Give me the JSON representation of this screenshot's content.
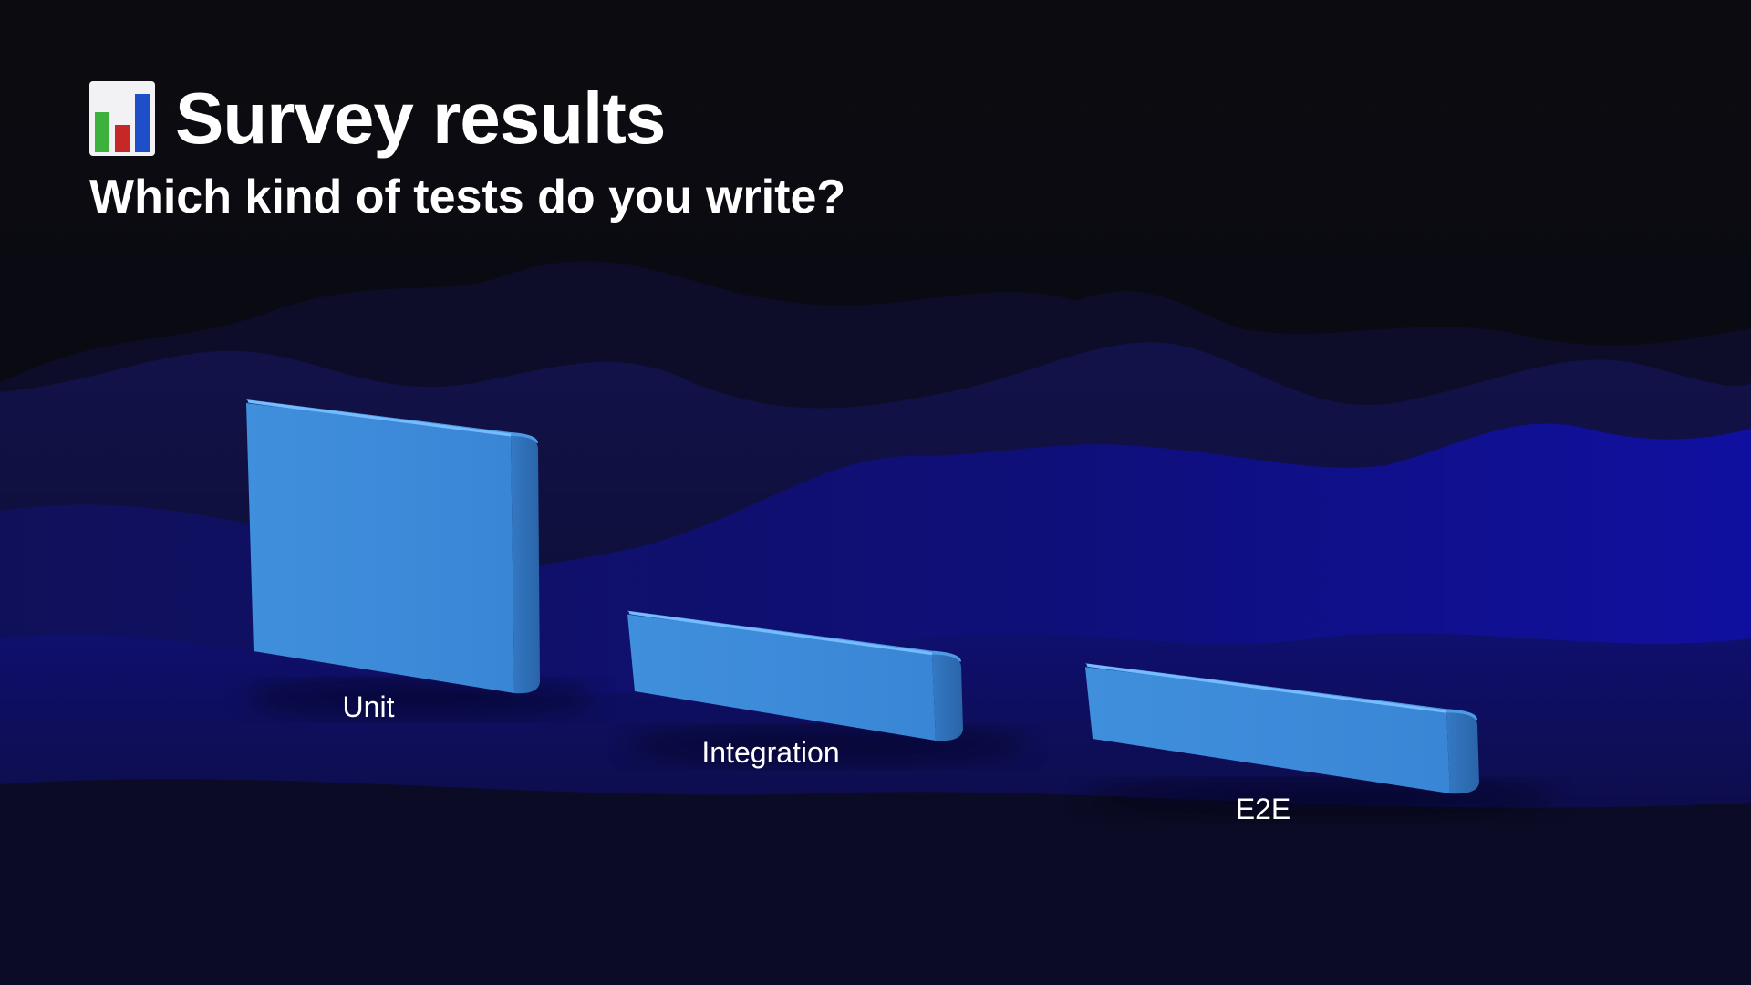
{
  "slide": {
    "title": "Survey results",
    "subtitle": "Which kind of tests do you write?",
    "title_icon": "bar-chart-icon"
  },
  "colors": {
    "background": "#0b0b10",
    "terrain": "#0e0e8f",
    "bar": "#3b8ad8",
    "label": "#ffffff"
  },
  "chart_data": {
    "type": "bar",
    "title": "Which kind of tests do you write?",
    "categories": [
      "Unit",
      "Integration",
      "E2E"
    ],
    "values": [
      100,
      32,
      30
    ],
    "grid": false,
    "legend": "none"
  }
}
